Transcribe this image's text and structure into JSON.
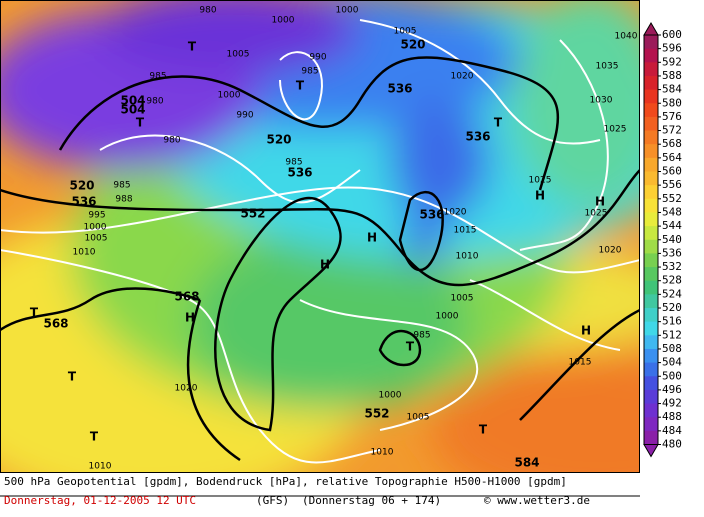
{
  "colorbar": {
    "labels": [
      600,
      596,
      592,
      588,
      584,
      580,
      576,
      572,
      568,
      564,
      560,
      556,
      552,
      548,
      544,
      540,
      536,
      532,
      528,
      524,
      520,
      516,
      512,
      508,
      504,
      500,
      496,
      492,
      488,
      484,
      480
    ],
    "colors": [
      "#9b1b5a",
      "#b3124e",
      "#c81a3a",
      "#d8222a",
      "#e83520",
      "#f04a1c",
      "#f26020",
      "#f47a24",
      "#f69028",
      "#f8a82c",
      "#faba30",
      "#fcd034",
      "#f8e238",
      "#e8ec3c",
      "#c8e840",
      "#a0dc48",
      "#78d050",
      "#58c860",
      "#40c478",
      "#40c8a0",
      "#40d0c8",
      "#40d8e8",
      "#40b8f0",
      "#3a90f0",
      "#3a70e8",
      "#4450e0",
      "#5a3cd8",
      "#6e30d0",
      "#7e28c0",
      "#8a20a8"
    ]
  },
  "map_labels": [
    "980",
    "1000",
    "1000",
    "1005",
    "985",
    "1000",
    "990",
    "980",
    "504",
    "504",
    "980",
    "T",
    "T",
    "T",
    "990",
    "985",
    "520",
    "1005",
    "536",
    "1020",
    "536",
    "T",
    "520",
    "536",
    "985",
    "520",
    "536",
    "985",
    "988",
    "995",
    "1000",
    "1005",
    "1010",
    "552",
    "H",
    "H",
    "536",
    "1020",
    "1015",
    "1010",
    "1025",
    "H",
    "H",
    "1025",
    "1040",
    "1035",
    "1030",
    "1025",
    "1020",
    "568",
    "H",
    "T",
    "568",
    "T",
    "T",
    "1020",
    "1010",
    "T",
    "985",
    "1005",
    "1000",
    "1000",
    "1005",
    "552",
    "1010",
    "T",
    "584",
    "1015",
    "H"
  ],
  "footer": {
    "description": "500 hPa Geopotential [gpdm], Bodendruck [hPa], relative Topographie H500-H1000 [gpdm]",
    "date": "Donnerstag, 01-12-2005  12 UTC",
    "model": "(GFS)",
    "run": "(Donnerstag 06 + 174)",
    "credit": "© www.wetter3.de"
  }
}
